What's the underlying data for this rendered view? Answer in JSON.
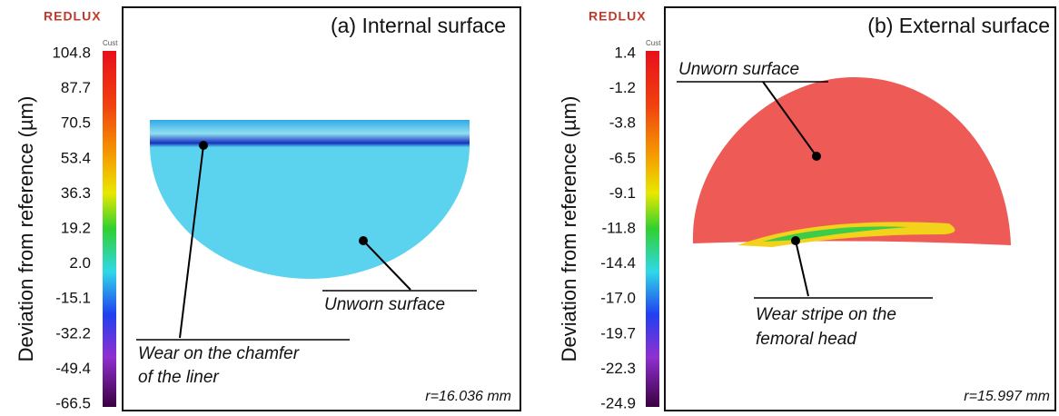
{
  "panels": [
    {
      "logo": "REDLUX",
      "colorbar_label": "Cust",
      "axis_label": "Deviation from reference (µm)",
      "ticks": [
        "104.8",
        "87.7",
        "70.5",
        "53.4",
        "36.3",
        "19.2",
        "2.0",
        "-15.1",
        "-32.2",
        "-49.4",
        "-66.5"
      ],
      "title": "(a) Internal surface",
      "annotations": [
        {
          "lines": [
            "Wear on the chamfer",
            "of the liner"
          ]
        },
        {
          "lines": [
            "Unworn surface"
          ]
        }
      ],
      "radius": "r=16.036 mm"
    },
    {
      "logo": "REDLUX",
      "colorbar_label": "Cust",
      "axis_label": "Deviation from reference (µm)",
      "ticks": [
        "1.4",
        "-1.2",
        "-3.8",
        "-6.5",
        "-9.1",
        "-11.8",
        "-14.4",
        "-17.0",
        "-19.7",
        "-22.3",
        "-24.9"
      ],
      "title": "(b) External surface",
      "annotations": [
        {
          "lines": [
            "Unworn surface"
          ]
        },
        {
          "lines": [
            "Wear stripe on the",
            "femoral head"
          ]
        }
      ],
      "radius": "r=15.997 mm"
    }
  ]
}
